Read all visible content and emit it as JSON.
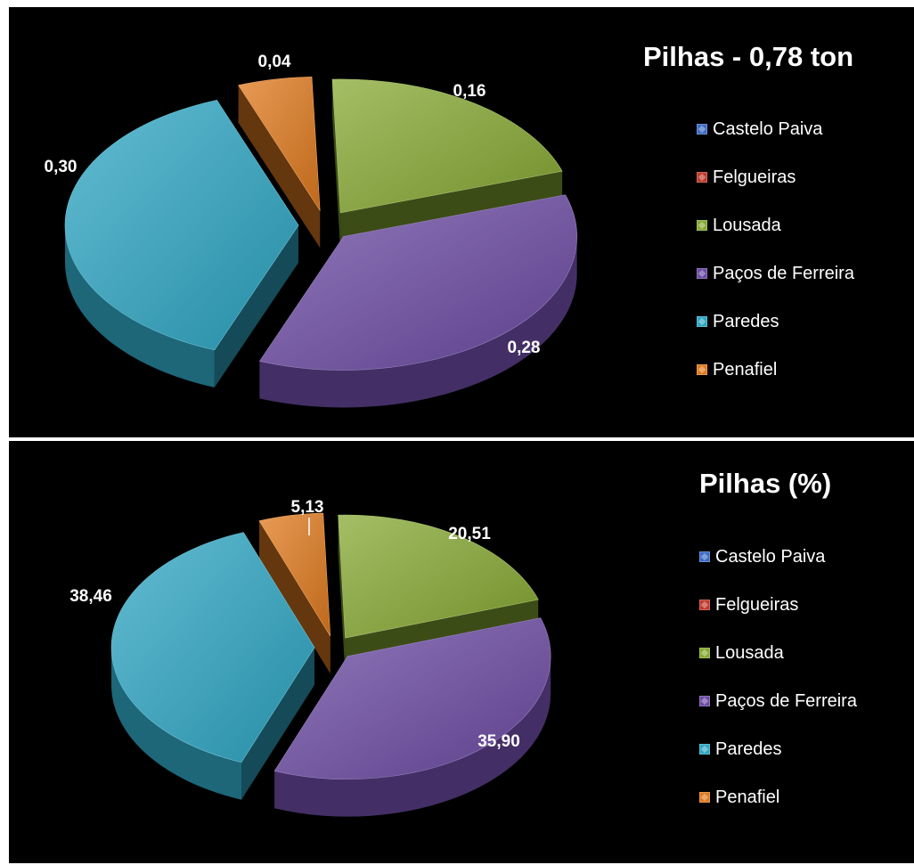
{
  "chart_data": [
    {
      "type": "pie",
      "title": "Pilhas - 0,78 ton",
      "categories": [
        "Castelo Paiva",
        "Felgueiras",
        "Lousada",
        "Paços de Ferreira",
        "Paredes",
        "Penafiel"
      ],
      "values": [
        0,
        0,
        0.16,
        0.28,
        0.3,
        0.04
      ],
      "data_labels": [
        "",
        "",
        "0,16",
        "0,28",
        "0,30",
        "0,04"
      ],
      "colors": [
        "#3d6bc4",
        "#c0392b",
        "#86a832",
        "#6c4ba3",
        "#2ea6c3",
        "#e07a1e"
      ],
      "legend_position": "right",
      "style": "3d-exploded"
    },
    {
      "type": "pie",
      "title": "Pilhas (%)",
      "categories": [
        "Castelo Paiva",
        "Felgueiras",
        "Lousada",
        "Paços de Ferreira",
        "Paredes",
        "Penafiel"
      ],
      "values": [
        0,
        0,
        20.51,
        35.9,
        38.46,
        5.13
      ],
      "data_labels": [
        "",
        "",
        "20,51",
        "35,90",
        "38,46",
        "5,13"
      ],
      "colors": [
        "#3d6bc4",
        "#c0392b",
        "#86a832",
        "#6c4ba3",
        "#2ea6c3",
        "#e07a1e"
      ],
      "legend_position": "right",
      "style": "3d-exploded"
    }
  ]
}
